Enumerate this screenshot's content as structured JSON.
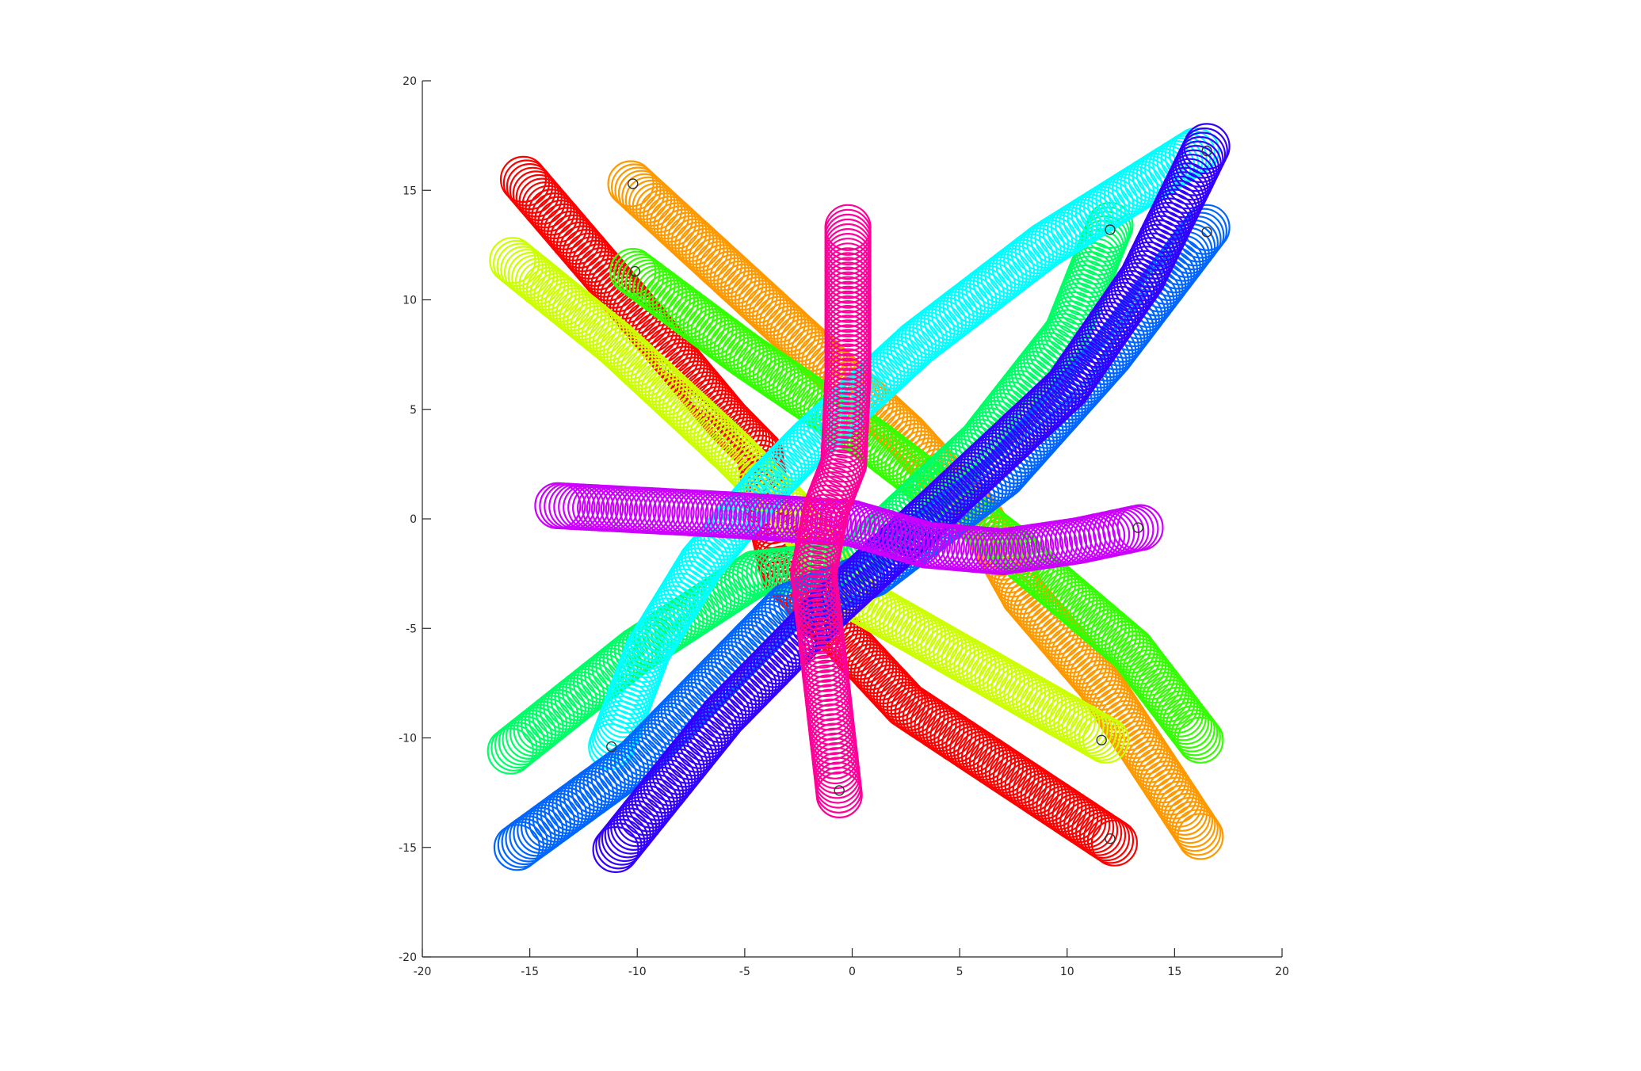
{
  "chart_data": {
    "type": "scatter",
    "title": "",
    "xlabel": "",
    "ylabel": "",
    "xlim": [
      -20,
      20
    ],
    "ylim": [
      -20,
      20
    ],
    "xticks": [
      "-20",
      "-15",
      "-10",
      "-5",
      "0",
      "5",
      "10",
      "15",
      "20"
    ],
    "yticks": [
      "-20",
      "-15",
      "-10",
      "-5",
      "0",
      "5",
      "10",
      "15",
      "20"
    ],
    "grid": false,
    "legend": "none",
    "marker": "circle",
    "series": [
      {
        "color": "#ff0000",
        "points": [
          [
            -15.3,
            15.5
          ],
          [
            -10.5,
            10.0
          ],
          [
            -5.8,
            4.5
          ],
          [
            -4.3,
            3.0
          ],
          [
            -4.0,
            1.0
          ],
          [
            -3.2,
            -2.5
          ],
          [
            2.5,
            -8.5
          ],
          [
            12.2,
            -14.8
          ]
        ],
        "end_marker": [
          12.0,
          -14.6
        ]
      },
      {
        "color": "#ff9900",
        "points": [
          [
            -10.3,
            15.3
          ],
          [
            2.5,
            3.8
          ],
          [
            6.0,
            0.0
          ],
          [
            8.0,
            -3.5
          ],
          [
            11.5,
            -7.5
          ],
          [
            16.2,
            -14.5
          ]
        ],
        "end_marker": [
          -10.2,
          15.3
        ]
      },
      {
        "color": "#ccff00",
        "points": [
          [
            -15.8,
            11.8
          ],
          [
            -11.0,
            8.0
          ],
          [
            -5.5,
            3.0
          ],
          [
            -3.0,
            0.5
          ],
          [
            0.0,
            -3.5
          ],
          [
            11.8,
            -10.1
          ]
        ],
        "end_marker": [
          11.6,
          -10.1
        ]
      },
      {
        "color": "#33ff00",
        "points": [
          [
            -10.2,
            11.3
          ],
          [
            -5.0,
            7.5
          ],
          [
            1.0,
            3.5
          ],
          [
            7.0,
            -1.0
          ],
          [
            13.0,
            -6.0
          ],
          [
            16.2,
            -10.1
          ]
        ],
        "end_marker": [
          -10.1,
          11.3
        ]
      },
      {
        "color": "#00ff66",
        "points": [
          [
            -15.9,
            -10.6
          ],
          [
            -10.0,
            -6.0
          ],
          [
            -4.5,
            -2.5
          ],
          [
            0.0,
            -2.0
          ],
          [
            6.0,
            3.5
          ],
          [
            10.0,
            8.5
          ],
          [
            12.0,
            13.4
          ]
        ],
        "end_marker": [
          12.0,
          13.2
        ]
      },
      {
        "color": "#00ffff",
        "points": [
          [
            -11.2,
            -10.4
          ],
          [
            -9.5,
            -6.0
          ],
          [
            -7.0,
            -2.0
          ],
          [
            -4.0,
            1.5
          ],
          [
            -2.0,
            3.5
          ],
          [
            3.0,
            8.0
          ],
          [
            9.0,
            12.5
          ],
          [
            16.0,
            16.8
          ]
        ],
        "end_marker": [
          -11.2,
          -10.4
        ]
      },
      {
        "color": "#0066ff",
        "points": [
          [
            -15.6,
            -15.0
          ],
          [
            -10.0,
            -11.0
          ],
          [
            -3.0,
            -4.0
          ],
          [
            1.0,
            -2.5
          ],
          [
            7.0,
            2.0
          ],
          [
            12.0,
            7.5
          ],
          [
            16.5,
            13.3
          ]
        ],
        "end_marker": [
          16.5,
          13.1
        ]
      },
      {
        "color": "#3300ff",
        "points": [
          [
            -11.0,
            -15.1
          ],
          [
            -6.0,
            -9.0
          ],
          [
            -1.0,
            -4.0
          ],
          [
            4.0,
            0.5
          ],
          [
            10.0,
            6.0
          ],
          [
            13.5,
            11.0
          ],
          [
            16.5,
            17.0
          ]
        ],
        "end_marker": [
          16.5,
          16.8
        ]
      },
      {
        "color": "#cc00ff",
        "points": [
          [
            -13.7,
            0.6
          ],
          [
            -6.0,
            0.2
          ],
          [
            0.0,
            -0.2
          ],
          [
            3.5,
            -1.2
          ],
          [
            7.0,
            -1.5
          ],
          [
            10.5,
            -1.0
          ],
          [
            13.4,
            -0.4
          ]
        ],
        "end_marker": [
          13.3,
          -0.4
        ]
      },
      {
        "color": "#ff0099",
        "points": [
          [
            -0.2,
            13.3
          ],
          [
            -0.2,
            6.5
          ],
          [
            -0.4,
            2.5
          ],
          [
            -1.2,
            0.5
          ],
          [
            -1.8,
            -2.5
          ],
          [
            -1.2,
            -7.5
          ],
          [
            -0.6,
            -12.6
          ]
        ],
        "end_marker": [
          -0.6,
          -12.4
        ]
      }
    ]
  }
}
